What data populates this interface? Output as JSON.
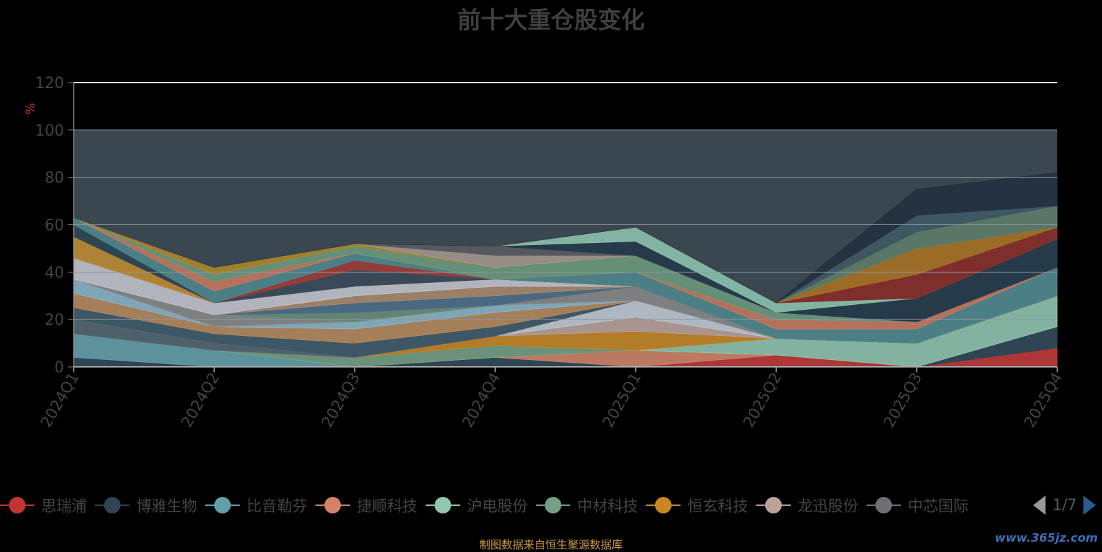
{
  "title": "前十大重仓股变化",
  "source_text": "制图数据来自恒生聚源数据库",
  "watermark": "www.365jz.com",
  "pager": {
    "text": "1/7"
  },
  "chart_data": {
    "type": "area",
    "title": "前十大重仓股变化",
    "ylabel": "%",
    "ylim": [
      0,
      120
    ],
    "yticks": [
      0,
      20,
      40,
      60,
      80,
      100,
      120
    ],
    "grid": true,
    "legend_position": "bottom",
    "categories": [
      "2024Q1",
      "2024Q2",
      "2024Q3",
      "2024Q4",
      "2025Q1",
      "2025Q2",
      "2025Q3",
      "2025Q4"
    ],
    "series": [
      {
        "name": "思瑞浦",
        "color": "#c23531",
        "values": [
          0,
          0,
          0,
          0,
          0,
          5,
          0,
          8
        ]
      },
      {
        "name": "博雅生物",
        "color": "#2f4554",
        "values": [
          4,
          0,
          0,
          4,
          0,
          0,
          0,
          9
        ]
      },
      {
        "name": "比音勒芬",
        "color": "#61a0a8",
        "values": [
          10,
          7,
          0,
          0,
          0,
          0,
          0,
          0
        ]
      },
      {
        "name": "捷顺科技",
        "color": "#d48265",
        "values": [
          0,
          0,
          0,
          0,
          7,
          0,
          0,
          0
        ]
      },
      {
        "name": "沪电股份",
        "color": "#91c7ae",
        "values": [
          0,
          0,
          0,
          0,
          0,
          7,
          10,
          13
        ]
      },
      {
        "name": "中材科技",
        "color": "#749f83",
        "values": [
          0,
          0,
          4,
          5,
          0,
          0,
          0,
          0
        ]
      },
      {
        "name": "恒玄科技",
        "color": "#ca8622",
        "values": [
          0,
          0,
          0,
          4,
          8,
          0,
          0,
          0
        ]
      },
      {
        "name": "龙迅股份",
        "color": "#bda29a",
        "values": [
          0,
          0,
          0,
          0,
          6,
          0,
          0,
          0
        ]
      },
      {
        "name": "中芯国际",
        "color": "#6e7074",
        "values": [
          0,
          0,
          0,
          0,
          0,
          0,
          0,
          0
        ]
      },
      {
        "name": "",
        "color": "#546570",
        "values": [
          6,
          3,
          0,
          0,
          0,
          0,
          0,
          0
        ]
      },
      {
        "name": "",
        "color": "#c4ccd3",
        "values": [
          0,
          0,
          0,
          0,
          7,
          0,
          0,
          0
        ]
      },
      {
        "name": "",
        "color": "#a0a7e6",
        "values": [
          0,
          0,
          0,
          0,
          0,
          0,
          0,
          0
        ]
      },
      {
        "name": "",
        "color": "#5a6f7f",
        "values": [
          0,
          0,
          0,
          0,
          0,
          0,
          0,
          0
        ]
      },
      {
        "name": "",
        "color": "#e37c73",
        "values": [
          0,
          0,
          0,
          0,
          0,
          0,
          0,
          0
        ]
      },
      {
        "name": "",
        "color": "#3e5b6a",
        "values": [
          5,
          4,
          6,
          4,
          0,
          0,
          0,
          0
        ]
      },
      {
        "name": "",
        "color": "#b98a5a",
        "values": [
          6,
          3,
          6,
          6,
          0,
          0,
          0,
          0
        ]
      },
      {
        "name": "",
        "color": "#8cb7c9",
        "values": [
          6,
          0,
          3,
          3,
          0,
          0,
          0,
          0
        ]
      },
      {
        "name": "",
        "color": "#8a8a8a",
        "values": [
          0,
          5,
          0,
          0,
          6,
          0,
          0,
          0
        ]
      },
      {
        "name": "",
        "color": "#6b8f7b",
        "values": [
          0,
          0,
          4,
          0,
          0,
          0,
          0,
          0
        ]
      },
      {
        "name": "",
        "color": "#9c3a3a",
        "values": [
          0,
          0,
          0,
          0,
          0,
          0,
          0,
          0
        ]
      },
      {
        "name": "",
        "color": "#4c6e8a",
        "values": [
          0,
          0,
          4,
          4,
          0,
          0,
          0,
          0
        ]
      },
      {
        "name": "",
        "color": "#ab8b6c",
        "values": [
          0,
          0,
          3,
          4,
          0,
          0,
          0,
          0
        ]
      },
      {
        "name": "",
        "color": "#c8c8d0",
        "values": [
          9,
          5,
          4,
          3,
          0,
          0,
          0,
          0
        ]
      },
      {
        "name": "",
        "color": "#394a59",
        "values": [
          0,
          0,
          7,
          0,
          0,
          0,
          0,
          0
        ]
      },
      {
        "name": "",
        "color": "#a33c34",
        "values": [
          0,
          0,
          4,
          0,
          0,
          0,
          0,
          0
        ]
      },
      {
        "name": "",
        "color": "#c48e30",
        "values": [
          9,
          0,
          0,
          0,
          0,
          0,
          0,
          0
        ]
      },
      {
        "name": "",
        "color": "#2c4453",
        "values": [
          5,
          0,
          0,
          0,
          0,
          0,
          0,
          0
        ]
      },
      {
        "name": "",
        "color": "#4f8a8e",
        "values": [
          3,
          5,
          3,
          0,
          6,
          4,
          6,
          12
        ]
      },
      {
        "name": "",
        "color": "#ca7a5e",
        "values": [
          0,
          4,
          0,
          0,
          0,
          4,
          3,
          0
        ]
      },
      {
        "name": "",
        "color": "#6f9c7e",
        "values": [
          0,
          3,
          3,
          5,
          7,
          3,
          0,
          0
        ]
      },
      {
        "name": "",
        "color": "#b48a26",
        "values": [
          0,
          3,
          1,
          0,
          0,
          0,
          0,
          0
        ]
      },
      {
        "name": "",
        "color": "#a8998f",
        "values": [
          0,
          0,
          0,
          5,
          0,
          0,
          0,
          0
        ]
      },
      {
        "name": "",
        "color": "#5b5c62",
        "values": [
          0,
          0,
          0,
          4,
          0,
          0,
          0,
          0
        ]
      },
      {
        "name": "",
        "color": "#243848",
        "values": [
          0,
          0,
          0,
          0,
          6,
          0,
          10,
          12
        ]
      },
      {
        "name": "",
        "color": "#8ec8b0",
        "values": [
          0,
          0,
          0,
          0,
          6,
          4,
          0,
          0
        ]
      },
      {
        "name": "",
        "color": "#a8382f",
        "values": [
          0,
          0,
          0,
          0,
          0,
          0,
          0,
          0
        ]
      },
      {
        "name": "",
        "color": "#8b2b26",
        "values": [
          0,
          0,
          0,
          0,
          0,
          0,
          10,
          5
        ]
      },
      {
        "name": "",
        "color": "#ad7320",
        "values": [
          0,
          0,
          0,
          0,
          0,
          0,
          11,
          0
        ]
      },
      {
        "name": "",
        "color": "#5f7f6a",
        "values": [
          0,
          0,
          0,
          0,
          0,
          0,
          7,
          9
        ]
      },
      {
        "name": "",
        "color": "#405a66",
        "values": [
          0,
          0,
          0,
          0,
          0,
          0,
          7,
          0
        ]
      },
      {
        "name": "",
        "color": "#22303d",
        "values": [
          0,
          0,
          0,
          0,
          0,
          0,
          11,
          14
        ]
      }
    ]
  }
}
